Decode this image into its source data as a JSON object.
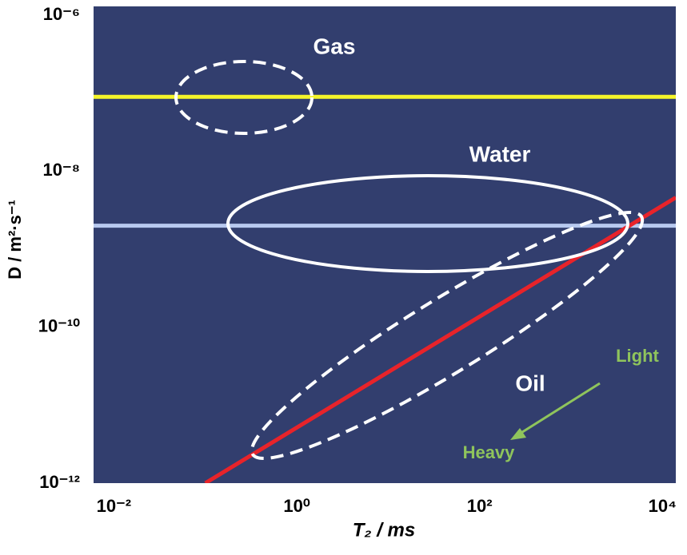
{
  "chart_data": {
    "type": "line",
    "xlabel": "T₂ / ms",
    "ylabel": "D / m²·s⁻¹",
    "xscale": "log",
    "yscale": "log",
    "xlim": [
      0.006,
      14000
    ],
    "ylim": [
      1e-12,
      1.3e-06
    ],
    "xticks": [
      {
        "value": 0.01,
        "label": "10⁻²"
      },
      {
        "value": 1,
        "label": "10⁰"
      },
      {
        "value": 100,
        "label": "10²"
      },
      {
        "value": 10000,
        "label": "10⁴"
      }
    ],
    "yticks": [
      {
        "value": 1e-12,
        "label": "10⁻¹²"
      },
      {
        "value": 1e-10,
        "label": "10⁻¹⁰"
      },
      {
        "value": 1e-08,
        "label": "10⁻⁸"
      },
      {
        "value": 1e-06,
        "label": "10⁻⁶"
      }
    ],
    "background": "#323e6e",
    "series": [
      {
        "color": "#f5f52a",
        "x": [
          0.006,
          14000
        ],
        "values": [
          9e-08,
          9e-08
        ]
      },
      {
        "color": "#b8c9ef",
        "x": [
          0.006,
          14000
        ],
        "values": [
          2e-09,
          2e-09
        ]
      },
      {
        "color": "#e8232a",
        "x": [
          0.1,
          14000
        ],
        "values": [
          1e-12,
          4.6e-09
        ]
      }
    ],
    "annotations": [
      {
        "text": "Gas",
        "color": "#ffffff"
      },
      {
        "text": "Water",
        "color": "#ffffff"
      },
      {
        "text": "Oil",
        "color": "#ffffff"
      },
      {
        "text": "Light",
        "color": "#8fc45c"
      },
      {
        "text": "Heavy",
        "color": "#8fc45c"
      }
    ]
  }
}
